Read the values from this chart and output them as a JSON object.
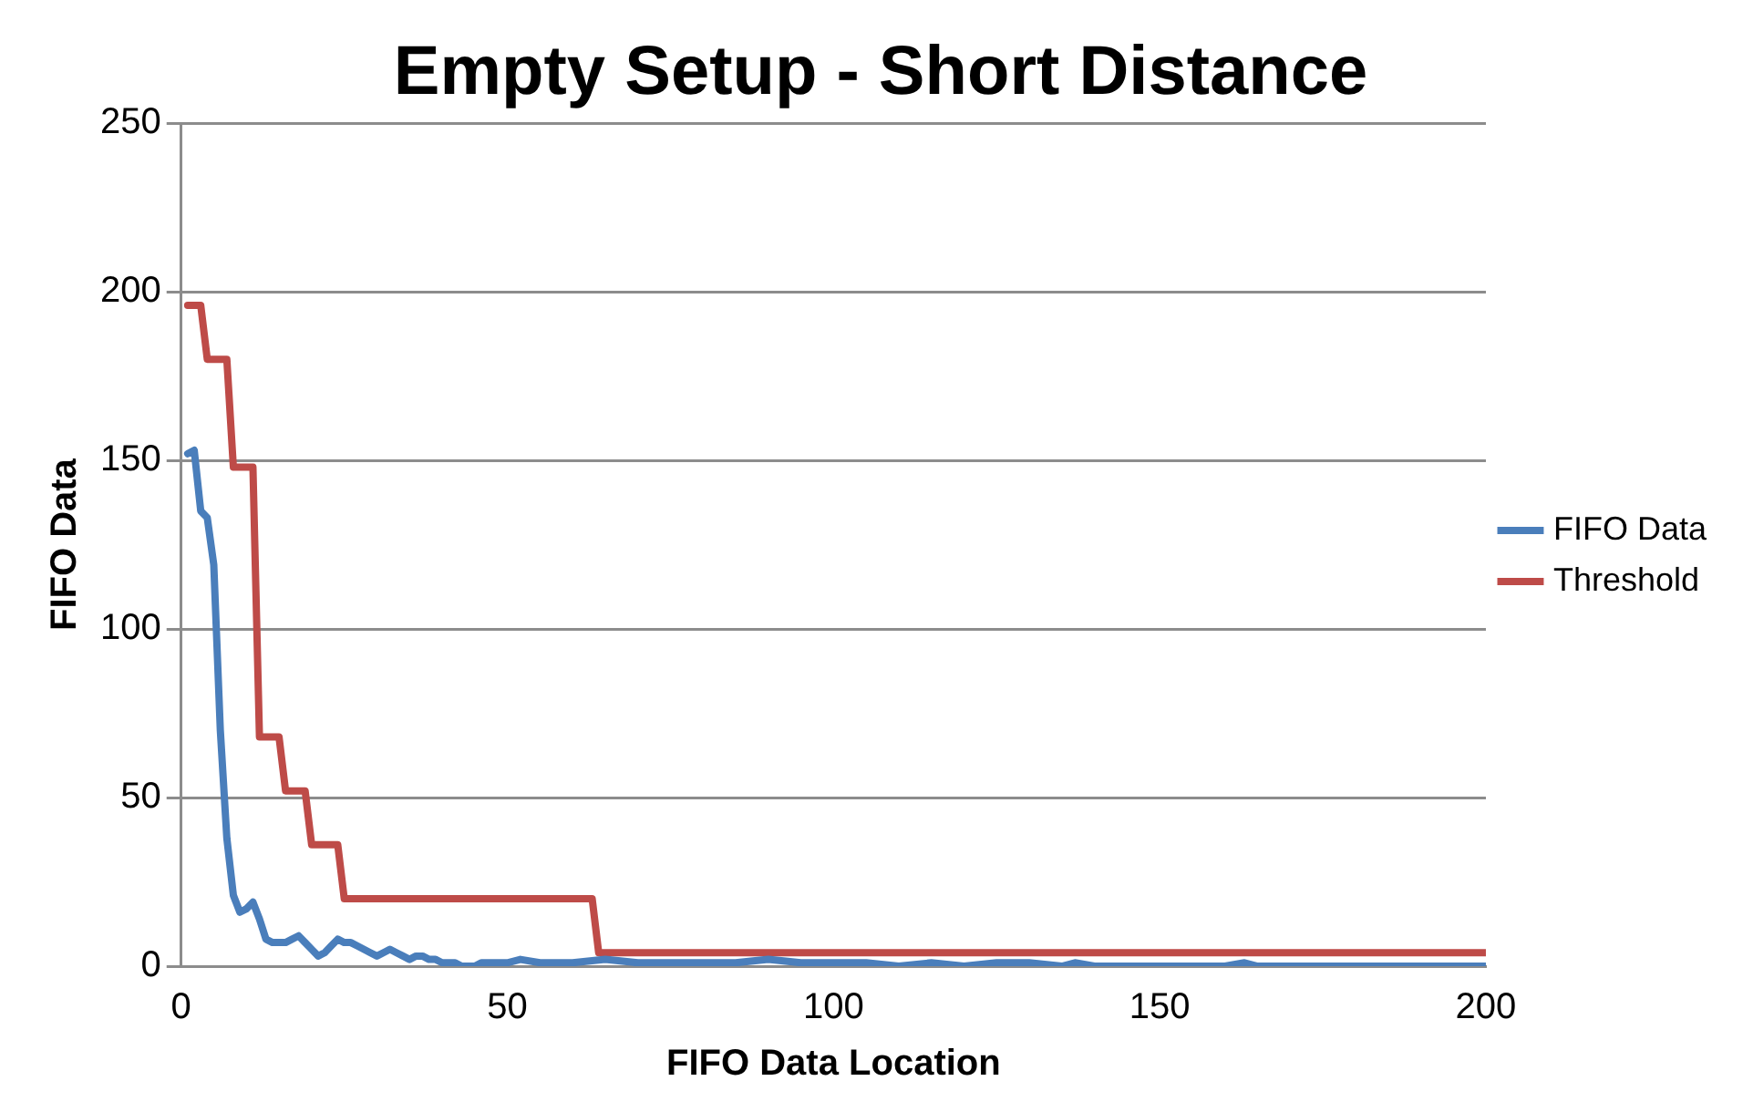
{
  "chart_data": {
    "type": "line",
    "title": "Empty Setup - Short Distance",
    "xlabel": "FIFO Data Location",
    "ylabel": "FIFO Data",
    "xlim": [
      0,
      200
    ],
    "xticks": [
      0,
      50,
      100,
      150,
      200
    ],
    "ylim": [
      0,
      250
    ],
    "yticks": [
      0,
      50,
      100,
      150,
      200,
      250
    ],
    "grid": "y",
    "legend": "right",
    "marker": "none",
    "line_style": "solid",
    "series": [
      {
        "name": "FIFO Data",
        "color": "#4a7ebb",
        "x": [
          1,
          2,
          3,
          4,
          5,
          6,
          7,
          8,
          9,
          10,
          11,
          12,
          13,
          14,
          15,
          16,
          17,
          18,
          19,
          20,
          21,
          22,
          23,
          24,
          25,
          26,
          27,
          28,
          29,
          30,
          31,
          32,
          33,
          34,
          35,
          36,
          37,
          38,
          39,
          40,
          41,
          42,
          43,
          44,
          45,
          46,
          47,
          50,
          52,
          55,
          60,
          65,
          70,
          75,
          80,
          85,
          90,
          95,
          100,
          105,
          110,
          115,
          120,
          125,
          130,
          135,
          137,
          140,
          150,
          160,
          163,
          165,
          170,
          200
        ],
        "values": [
          152,
          153,
          135,
          133,
          119,
          70,
          38,
          21,
          16,
          17,
          19,
          14,
          8,
          7,
          7,
          7,
          8,
          9,
          7,
          5,
          3,
          4,
          6,
          8,
          7,
          7,
          6,
          5,
          4,
          3,
          4,
          5,
          4,
          3,
          2,
          3,
          3,
          2,
          2,
          1,
          1,
          1,
          0,
          0,
          0,
          1,
          1,
          1,
          2,
          1,
          1,
          2,
          1,
          1,
          1,
          1,
          2,
          1,
          1,
          1,
          0,
          1,
          0,
          1,
          1,
          0,
          1,
          0,
          0,
          0,
          1,
          0,
          0,
          0
        ]
      },
      {
        "name": "Threshold",
        "color": "#be4b48",
        "x": [
          1,
          3,
          4,
          7,
          8,
          11,
          12,
          15,
          16,
          19,
          20,
          24,
          25,
          63,
          64,
          200
        ],
        "values": [
          196,
          196,
          180,
          180,
          148,
          148,
          68,
          68,
          52,
          52,
          36,
          36,
          20,
          20,
          4,
          4
        ]
      }
    ]
  }
}
